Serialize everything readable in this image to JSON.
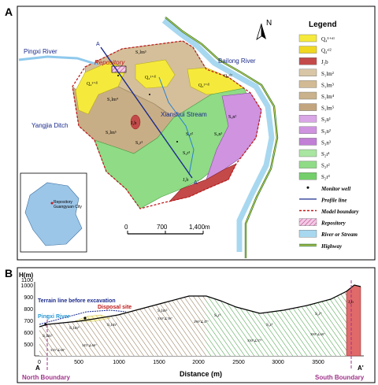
{
  "panel_a": {
    "label": "A",
    "north": "N",
    "places": {
      "pingxi": "Pingxi River",
      "repository": "Repository",
      "bailong": "Bailong River",
      "yangjia": "Yangjia Ditch",
      "xianshui": "Xianshui Stream",
      "profile_a": "A",
      "profile_a_prime": "A'"
    },
    "units": {
      "Q1": "Q₄¹⁺ᵈˡ",
      "Q2": "Q₄ᵃˡ²",
      "Jlm3": "S₁lm³",
      "Jlm4": "S₁lm⁴",
      "Jlm5": "S₁lm⁵",
      "Jb": "J₂b",
      "Jr1": "S₂r¹",
      "Jr2": "S₂r²",
      "Jr3": "S₂r³",
      "Jn2": "S₃n²",
      "Jn3": "S₃n³"
    },
    "scale": {
      "ticks": [
        "0",
        "700",
        "1,400m"
      ]
    },
    "inset": {
      "label1": "Repository",
      "label2": "Guangyuan City"
    }
  },
  "legend": {
    "title": "Legend",
    "items": [
      {
        "label": "Q₄¹⁺ᵈˡ",
        "color": "#f5ea3c",
        "kind": "fill"
      },
      {
        "label": "Q₄ᵃˡ²",
        "color": "#f0d820",
        "kind": "fill"
      },
      {
        "label": "J₂b",
        "color": "#c44a4a",
        "kind": "fill"
      },
      {
        "label": "S₁lm²",
        "color": "#d8c6a6",
        "kind": "fill"
      },
      {
        "label": "S₁lm³",
        "color": "#d2bb94",
        "kind": "fill"
      },
      {
        "label": "S₁lm⁴",
        "color": "#c9b28c",
        "kind": "fill"
      },
      {
        "label": "S₁lm⁵",
        "color": "#c2a57f",
        "kind": "fill"
      },
      {
        "label": "S₃n¹",
        "color": "#d9a6e6",
        "kind": "fill"
      },
      {
        "label": "S₃n²",
        "color": "#cf93e0",
        "kind": "fill"
      },
      {
        "label": "S₃n³",
        "color": "#c27fd6",
        "kind": "fill"
      },
      {
        "label": "S₂r¹",
        "color": "#a9e6a1",
        "kind": "fill"
      },
      {
        "label": "S₂r²",
        "color": "#8fdb86",
        "kind": "fill"
      },
      {
        "label": "S₂r³",
        "color": "#74cf6b",
        "kind": "fill"
      },
      {
        "label": "Monitor well",
        "color": "#000000",
        "kind": "dot"
      },
      {
        "label": "Profile line",
        "color": "#1a2a8c",
        "kind": "line"
      },
      {
        "label": "Model boundary",
        "color": "#c01a1a",
        "kind": "dash"
      },
      {
        "label": "Repository",
        "color": "#e6b3d9",
        "kind": "hatch"
      },
      {
        "label": "River or Stream",
        "color": "#a8d8f0",
        "kind": "fill"
      },
      {
        "label": "Highway",
        "color": "#2d7a2d",
        "kind": "highway"
      }
    ]
  },
  "panel_b": {
    "label": "B",
    "y_axis_label": "H(m)",
    "x_axis_label": "Distance (m)",
    "y_ticks": [
      "500",
      "600",
      "700",
      "800",
      "900",
      "1000",
      "1100"
    ],
    "x_ticks": [
      "0",
      "500",
      "1000",
      "1500",
      "2000",
      "2500",
      "3000",
      "3500"
    ],
    "annotations": {
      "terrain": "Terrain line before excavation",
      "pingxi": "Pingxi River",
      "disposal": "Disposal site",
      "north": "North Boundary",
      "south": "South Boundary",
      "end_a": "A",
      "end_a_prime": "A'"
    },
    "units": [
      "S₁lm⁵",
      "S₁lm⁴",
      "S₁lm³",
      "S₂r¹",
      "S₂r²",
      "S₂r³",
      "J₂b",
      "S₁lm²"
    ],
    "dips": [
      "335°∠60°",
      "345°∠66°",
      "330°∠56°",
      "290°∠47°",
      "330°∠57°",
      "300°∠60°"
    ]
  }
}
